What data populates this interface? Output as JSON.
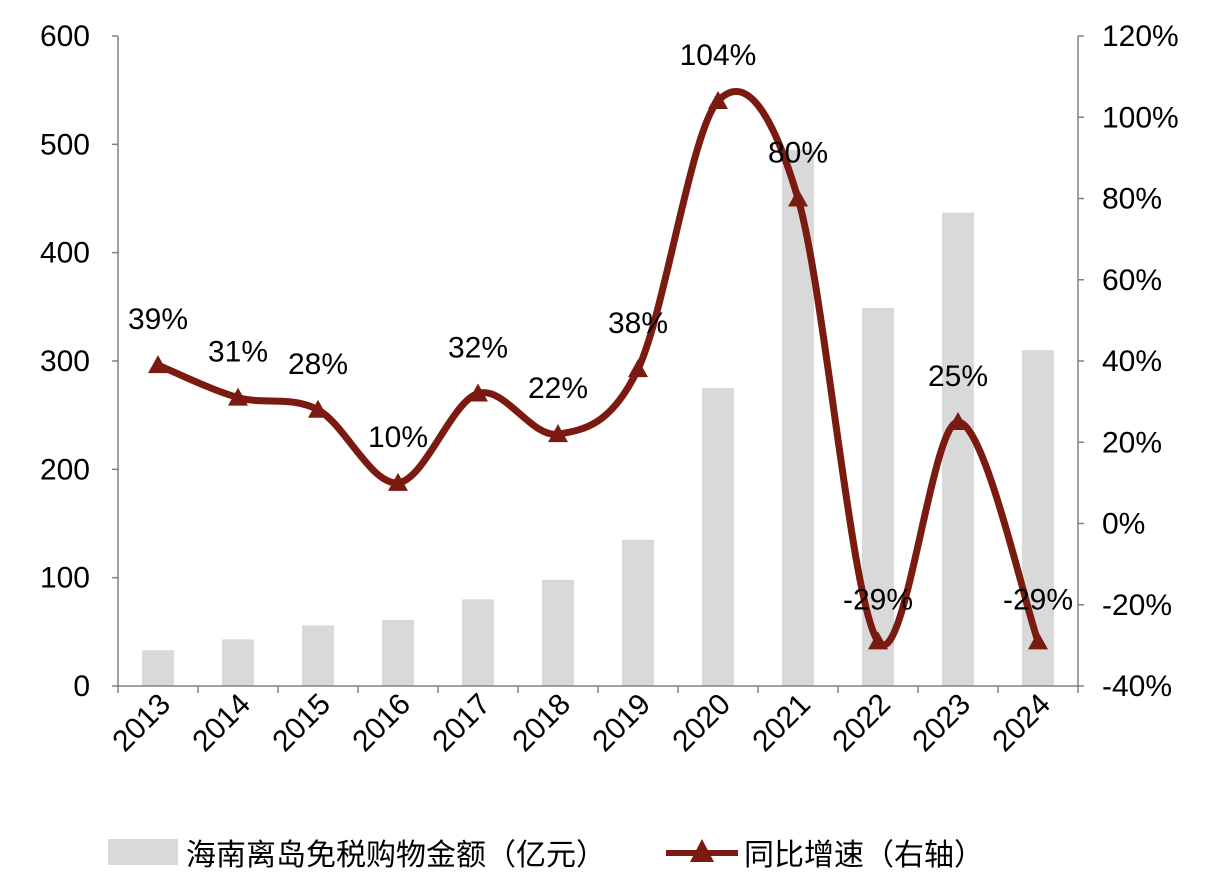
{
  "chart_data": {
    "type": "bar+line",
    "categories": [
      "2013",
      "2014",
      "2015",
      "2016",
      "2017",
      "2018",
      "2019",
      "2020",
      "2021",
      "2022",
      "2023",
      "2024"
    ],
    "series": [
      {
        "name": "海南离岛免税购物金额（亿元）",
        "type": "bar",
        "axis": "left",
        "color": "#d9d9d9",
        "values": [
          33,
          43,
          56,
          61,
          80,
          98,
          135,
          275,
          495,
          349,
          437,
          310
        ]
      },
      {
        "name": "同比增速（右轴）",
        "type": "line",
        "axis": "right",
        "color": "#7b1a10",
        "marker": "triangle",
        "values": [
          39,
          31,
          28,
          10,
          32,
          22,
          38,
          104,
          80,
          -29,
          25,
          -29
        ],
        "labels": [
          "39%",
          "31%",
          "28%",
          "10%",
          "32%",
          "22%",
          "38%",
          "104%",
          "80%",
          "-29%",
          "25%",
          "-29%"
        ]
      }
    ],
    "y_left": {
      "min": 0,
      "max": 600,
      "ticks": [
        "0",
        "100",
        "200",
        "300",
        "400",
        "500",
        "600"
      ]
    },
    "y_right": {
      "min": -40,
      "max": 120,
      "ticks": [
        "-40%",
        "-20%",
        "0%",
        "20%",
        "40%",
        "60%",
        "80%",
        "100%",
        "120%"
      ]
    },
    "legend_position": "bottom",
    "grid": false
  }
}
